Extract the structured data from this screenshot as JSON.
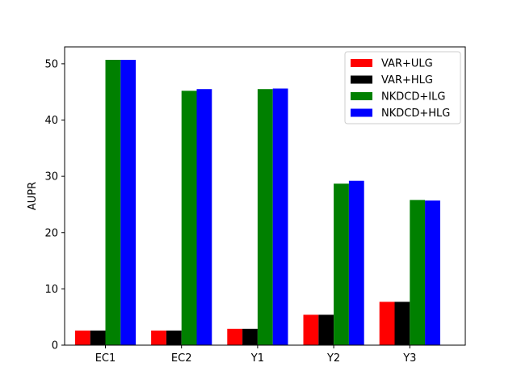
{
  "chart_data": {
    "type": "bar",
    "title": "",
    "xlabel": "",
    "ylabel": "AUPR",
    "ylim": [
      0,
      53
    ],
    "yticks": [
      0,
      10,
      20,
      30,
      40,
      50
    ],
    "grid": false,
    "legend_position": "top-right",
    "categories": [
      "EC1",
      "EC2",
      "Y1",
      "Y2",
      "Y3"
    ],
    "series": [
      {
        "name": "VAR+ULG",
        "color": "#ff0000",
        "values": [
          2.6,
          2.6,
          2.9,
          5.4,
          7.7
        ]
      },
      {
        "name": "VAR+HLG",
        "color": "#000000",
        "values": [
          2.6,
          2.6,
          2.9,
          5.4,
          7.7
        ]
      },
      {
        "name": "NKDCD+ILG",
        "color": "#008000",
        "values": [
          50.7,
          45.2,
          45.5,
          28.7,
          25.8
        ]
      },
      {
        "name": "NKDCD+HLG",
        "color": "#0000ff",
        "values": [
          50.7,
          45.5,
          45.6,
          29.2,
          25.7
        ]
      }
    ]
  }
}
